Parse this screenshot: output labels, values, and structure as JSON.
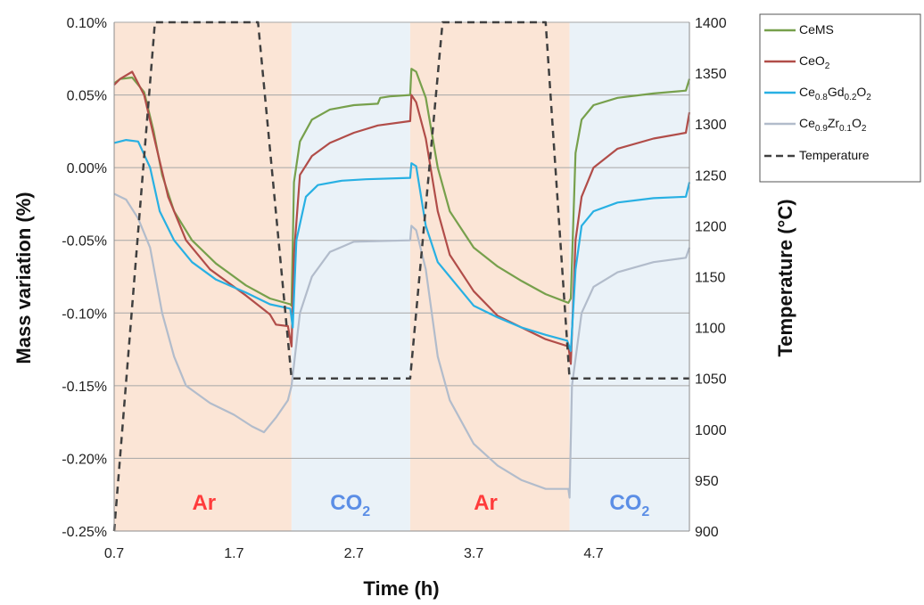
{
  "chart_data": {
    "type": "line",
    "xlabel": "Time (h)",
    "ylabel": "Mass variation (%)",
    "y2label": "Temperature (°C)",
    "xlim": [
      0.7,
      5.5
    ],
    "ylim": [
      -0.25,
      0.1
    ],
    "y2lim": [
      900,
      1400
    ],
    "xticks": [
      "0.7",
      "1.7",
      "2.7",
      "3.7",
      "4.7"
    ],
    "yticks": [
      "0.10%",
      "0.05%",
      "0.00%",
      "-0.05%",
      "-0.10%",
      "-0.15%",
      "-0.20%",
      "-0.25%"
    ],
    "y2ticks": [
      "1400",
      "1350",
      "1300",
      "1250",
      "1200",
      "1150",
      "1100",
      "1050",
      "1000",
      "950",
      "900"
    ],
    "grid": true,
    "legend_position": "right",
    "regions": [
      {
        "label": "Ar",
        "label_sub": "",
        "x0": 0.7,
        "x1": 2.18,
        "color": "#fbe5d6",
        "label_color": "#ff3b3b",
        "label_x": 1.45
      },
      {
        "label": "CO",
        "label_sub": "2",
        "x0": 2.18,
        "x1": 3.17,
        "color": "#eaf2f8",
        "label_color": "#5b8ee6",
        "label_x": 2.67
      },
      {
        "label": "Ar",
        "label_sub": "",
        "x0": 3.17,
        "x1": 4.5,
        "color": "#fbe5d6",
        "label_color": "#ff3b3b",
        "label_x": 3.8
      },
      {
        "label": "CO",
        "label_sub": "2",
        "x0": 4.5,
        "x1": 5.5,
        "color": "#eaf2f8",
        "label_color": "#5b8ee6",
        "label_x": 5.0
      }
    ],
    "series": [
      {
        "name": "CeMS",
        "color": "#77a04c",
        "axis": "left",
        "points": [
          [
            0.7,
            0.058
          ],
          [
            0.75,
            0.061
          ],
          [
            0.85,
            0.062
          ],
          [
            0.95,
            0.052
          ],
          [
            1.03,
            0.025
          ],
          [
            1.1,
            -0.005
          ],
          [
            1.2,
            -0.03
          ],
          [
            1.35,
            -0.05
          ],
          [
            1.55,
            -0.066
          ],
          [
            1.8,
            -0.081
          ],
          [
            2.0,
            -0.09
          ],
          [
            2.17,
            -0.094
          ],
          [
            2.18,
            -0.095
          ],
          [
            2.2,
            -0.01
          ],
          [
            2.25,
            0.018
          ],
          [
            2.35,
            0.033
          ],
          [
            2.5,
            0.04
          ],
          [
            2.7,
            0.043
          ],
          [
            2.9,
            0.044
          ],
          [
            2.92,
            0.048
          ],
          [
            3.0,
            0.049
          ],
          [
            3.17,
            0.05
          ],
          [
            3.18,
            0.068
          ],
          [
            3.22,
            0.066
          ],
          [
            3.3,
            0.048
          ],
          [
            3.4,
            0.0
          ],
          [
            3.5,
            -0.03
          ],
          [
            3.7,
            -0.055
          ],
          [
            3.9,
            -0.068
          ],
          [
            4.1,
            -0.078
          ],
          [
            4.3,
            -0.087
          ],
          [
            4.49,
            -0.093
          ],
          [
            4.51,
            -0.09
          ],
          [
            4.55,
            0.01
          ],
          [
            4.6,
            0.033
          ],
          [
            4.7,
            0.043
          ],
          [
            4.9,
            0.048
          ],
          [
            5.2,
            0.051
          ],
          [
            5.47,
            0.053
          ],
          [
            5.5,
            0.061
          ]
        ]
      },
      {
        "name": "CeO",
        "sub": "2",
        "color": "#b14d49",
        "axis": "left",
        "points": [
          [
            0.7,
            0.057
          ],
          [
            0.75,
            0.061
          ],
          [
            0.85,
            0.066
          ],
          [
            0.95,
            0.05
          ],
          [
            1.05,
            0.015
          ],
          [
            1.15,
            -0.02
          ],
          [
            1.3,
            -0.05
          ],
          [
            1.5,
            -0.07
          ],
          [
            1.8,
            -0.088
          ],
          [
            2.0,
            -0.101
          ],
          [
            2.05,
            -0.108
          ],
          [
            2.15,
            -0.109
          ],
          [
            2.18,
            -0.123
          ],
          [
            2.2,
            -0.06
          ],
          [
            2.25,
            -0.005
          ],
          [
            2.35,
            0.008
          ],
          [
            2.5,
            0.017
          ],
          [
            2.7,
            0.024
          ],
          [
            2.9,
            0.029
          ],
          [
            3.17,
            0.032
          ],
          [
            3.18,
            0.05
          ],
          [
            3.22,
            0.045
          ],
          [
            3.3,
            0.02
          ],
          [
            3.4,
            -0.03
          ],
          [
            3.5,
            -0.06
          ],
          [
            3.7,
            -0.085
          ],
          [
            3.9,
            -0.102
          ],
          [
            4.1,
            -0.11
          ],
          [
            4.3,
            -0.118
          ],
          [
            4.49,
            -0.123
          ],
          [
            4.51,
            -0.135
          ],
          [
            4.55,
            -0.05
          ],
          [
            4.6,
            -0.02
          ],
          [
            4.7,
            0.0
          ],
          [
            4.9,
            0.013
          ],
          [
            5.2,
            0.02
          ],
          [
            5.47,
            0.024
          ],
          [
            5.5,
            0.038
          ]
        ]
      },
      {
        "name": "Ce",
        "sub": "0.8",
        "name2": "Gd",
        "sub2": "0.2",
        "name3": "O",
        "sub3": "2",
        "color": "#28b0e3",
        "axis": "left",
        "points": [
          [
            0.7,
            0.017
          ],
          [
            0.8,
            0.019
          ],
          [
            0.9,
            0.018
          ],
          [
            1.0,
            0.0
          ],
          [
            1.08,
            -0.03
          ],
          [
            1.2,
            -0.05
          ],
          [
            1.35,
            -0.065
          ],
          [
            1.55,
            -0.077
          ],
          [
            1.8,
            -0.086
          ],
          [
            2.0,
            -0.094
          ],
          [
            2.17,
            -0.097
          ],
          [
            2.19,
            -0.11
          ],
          [
            2.22,
            -0.05
          ],
          [
            2.3,
            -0.02
          ],
          [
            2.4,
            -0.012
          ],
          [
            2.6,
            -0.009
          ],
          [
            2.8,
            -0.008
          ],
          [
            3.17,
            -0.007
          ],
          [
            3.18,
            0.003
          ],
          [
            3.22,
            0.001
          ],
          [
            3.3,
            -0.04
          ],
          [
            3.4,
            -0.065
          ],
          [
            3.55,
            -0.08
          ],
          [
            3.7,
            -0.095
          ],
          [
            3.9,
            -0.103
          ],
          [
            4.1,
            -0.11
          ],
          [
            4.3,
            -0.115
          ],
          [
            4.48,
            -0.119
          ],
          [
            4.51,
            -0.126
          ],
          [
            4.55,
            -0.07
          ],
          [
            4.6,
            -0.04
          ],
          [
            4.7,
            -0.03
          ],
          [
            4.9,
            -0.024
          ],
          [
            5.2,
            -0.021
          ],
          [
            5.47,
            -0.02
          ],
          [
            5.5,
            -0.01
          ]
        ]
      },
      {
        "name": "Ce",
        "sub": "0.9",
        "name2": "Zr",
        "sub2": "0.1",
        "name3": "O",
        "sub3": "2",
        "color": "#b2bccb",
        "axis": "left",
        "points": [
          [
            0.7,
            -0.018
          ],
          [
            0.8,
            -0.022
          ],
          [
            0.9,
            -0.035
          ],
          [
            1.0,
            -0.055
          ],
          [
            1.1,
            -0.1
          ],
          [
            1.2,
            -0.13
          ],
          [
            1.3,
            -0.15
          ],
          [
            1.5,
            -0.162
          ],
          [
            1.7,
            -0.17
          ],
          [
            1.85,
            -0.178
          ],
          [
            1.95,
            -0.182
          ],
          [
            2.05,
            -0.172
          ],
          [
            2.15,
            -0.16
          ],
          [
            2.18,
            -0.15
          ],
          [
            2.25,
            -0.1
          ],
          [
            2.35,
            -0.075
          ],
          [
            2.5,
            -0.058
          ],
          [
            2.7,
            -0.051
          ],
          [
            3.17,
            -0.05
          ],
          [
            3.18,
            -0.04
          ],
          [
            3.22,
            -0.043
          ],
          [
            3.3,
            -0.07
          ],
          [
            3.4,
            -0.13
          ],
          [
            3.5,
            -0.16
          ],
          [
            3.7,
            -0.19
          ],
          [
            3.9,
            -0.205
          ],
          [
            4.1,
            -0.215
          ],
          [
            4.3,
            -0.221
          ],
          [
            4.49,
            -0.221
          ],
          [
            4.5,
            -0.227
          ],
          [
            4.52,
            -0.15
          ],
          [
            4.6,
            -0.1
          ],
          [
            4.7,
            -0.082
          ],
          [
            4.9,
            -0.072
          ],
          [
            5.2,
            -0.065
          ],
          [
            5.47,
            -0.062
          ],
          [
            5.5,
            -0.055
          ]
        ]
      },
      {
        "name": "Temperature",
        "color": "#404040",
        "axis": "right",
        "dashed": true,
        "points": [
          [
            0.7,
            900
          ],
          [
            1.04,
            1400
          ],
          [
            1.9,
            1400
          ],
          [
            2.18,
            1050
          ],
          [
            3.17,
            1050
          ],
          [
            3.44,
            1400
          ],
          [
            4.3,
            1400
          ],
          [
            4.5,
            1050
          ],
          [
            5.5,
            1050
          ]
        ]
      }
    ]
  }
}
